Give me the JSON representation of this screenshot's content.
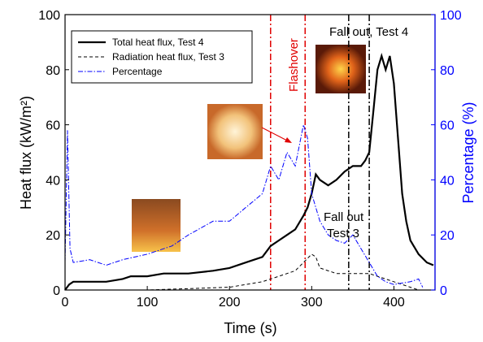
{
  "chart_data": {
    "type": "line",
    "xlabel": "Time (s)",
    "ylabel": "Heat flux (kW/m²)",
    "y2label": "Percentage (%)",
    "xlim": [
      0,
      450
    ],
    "xticks": [
      0,
      100,
      200,
      300,
      400
    ],
    "ylim": [
      0,
      100
    ],
    "yticks": [
      0,
      20,
      40,
      60,
      80,
      100
    ],
    "y2lim": [
      0,
      100
    ],
    "y2ticks": [
      0,
      20,
      40,
      60,
      80,
      100
    ],
    "legend": "upper left",
    "series": [
      {
        "name": "Total heat flux, Test 4",
        "color": "#000000",
        "style": "solid",
        "x": [
          0,
          5,
          10,
          50,
          70,
          80,
          100,
          120,
          150,
          180,
          200,
          220,
          240,
          250,
          260,
          270,
          280,
          290,
          295,
          300,
          305,
          310,
          320,
          330,
          340,
          350,
          360,
          365,
          370,
          375,
          380,
          385,
          390,
          395,
          400,
          405,
          410,
          415,
          420,
          430,
          440,
          448
        ],
        "values": [
          0,
          2,
          3,
          3,
          4,
          5,
          5,
          6,
          6,
          7,
          8,
          10,
          12,
          16,
          18,
          20,
          22,
          27,
          30,
          35,
          42,
          40,
          38,
          40,
          43,
          45,
          45,
          47,
          50,
          65,
          80,
          85,
          80,
          85,
          75,
          55,
          35,
          25,
          18,
          13,
          10,
          9
        ]
      },
      {
        "name": "Radiation heat flux, Test 3",
        "color": "#000000",
        "style": "dashed",
        "x": [
          0,
          100,
          200,
          240,
          260,
          280,
          290,
          300,
          305,
          310,
          330,
          350,
          370,
          380,
          400,
          420,
          430
        ],
        "values": [
          0,
          0,
          1,
          3,
          5,
          7,
          10,
          13,
          12,
          8,
          6,
          6,
          6,
          5,
          3,
          1,
          0
        ]
      },
      {
        "name": "Percentage",
        "color": "#0000ff",
        "style": "dashdot",
        "axis": "y2",
        "x": [
          0,
          3,
          6,
          10,
          30,
          50,
          70,
          100,
          130,
          150,
          180,
          200,
          220,
          240,
          250,
          260,
          270,
          280,
          290,
          295,
          300,
          310,
          320,
          330,
          340,
          350,
          360,
          370,
          380,
          390,
          400,
          420,
          430,
          435
        ],
        "values": [
          10,
          58,
          15,
          10,
          11,
          9,
          11,
          13,
          16,
          20,
          25,
          25,
          30,
          35,
          45,
          40,
          50,
          45,
          60,
          55,
          35,
          25,
          20,
          18,
          17,
          20,
          15,
          10,
          5,
          3,
          2,
          3,
          4,
          1
        ]
      }
    ],
    "vlines": [
      {
        "x": 250,
        "color": "#e00000"
      },
      {
        "x": 292,
        "color": "#e00000"
      },
      {
        "x": 345,
        "color": "#000000"
      },
      {
        "x": 370,
        "color": "#000000"
      }
    ],
    "annotations": [
      "Flashover",
      "Fall out, Test 4",
      "Fall out",
      "Test 3"
    ]
  }
}
